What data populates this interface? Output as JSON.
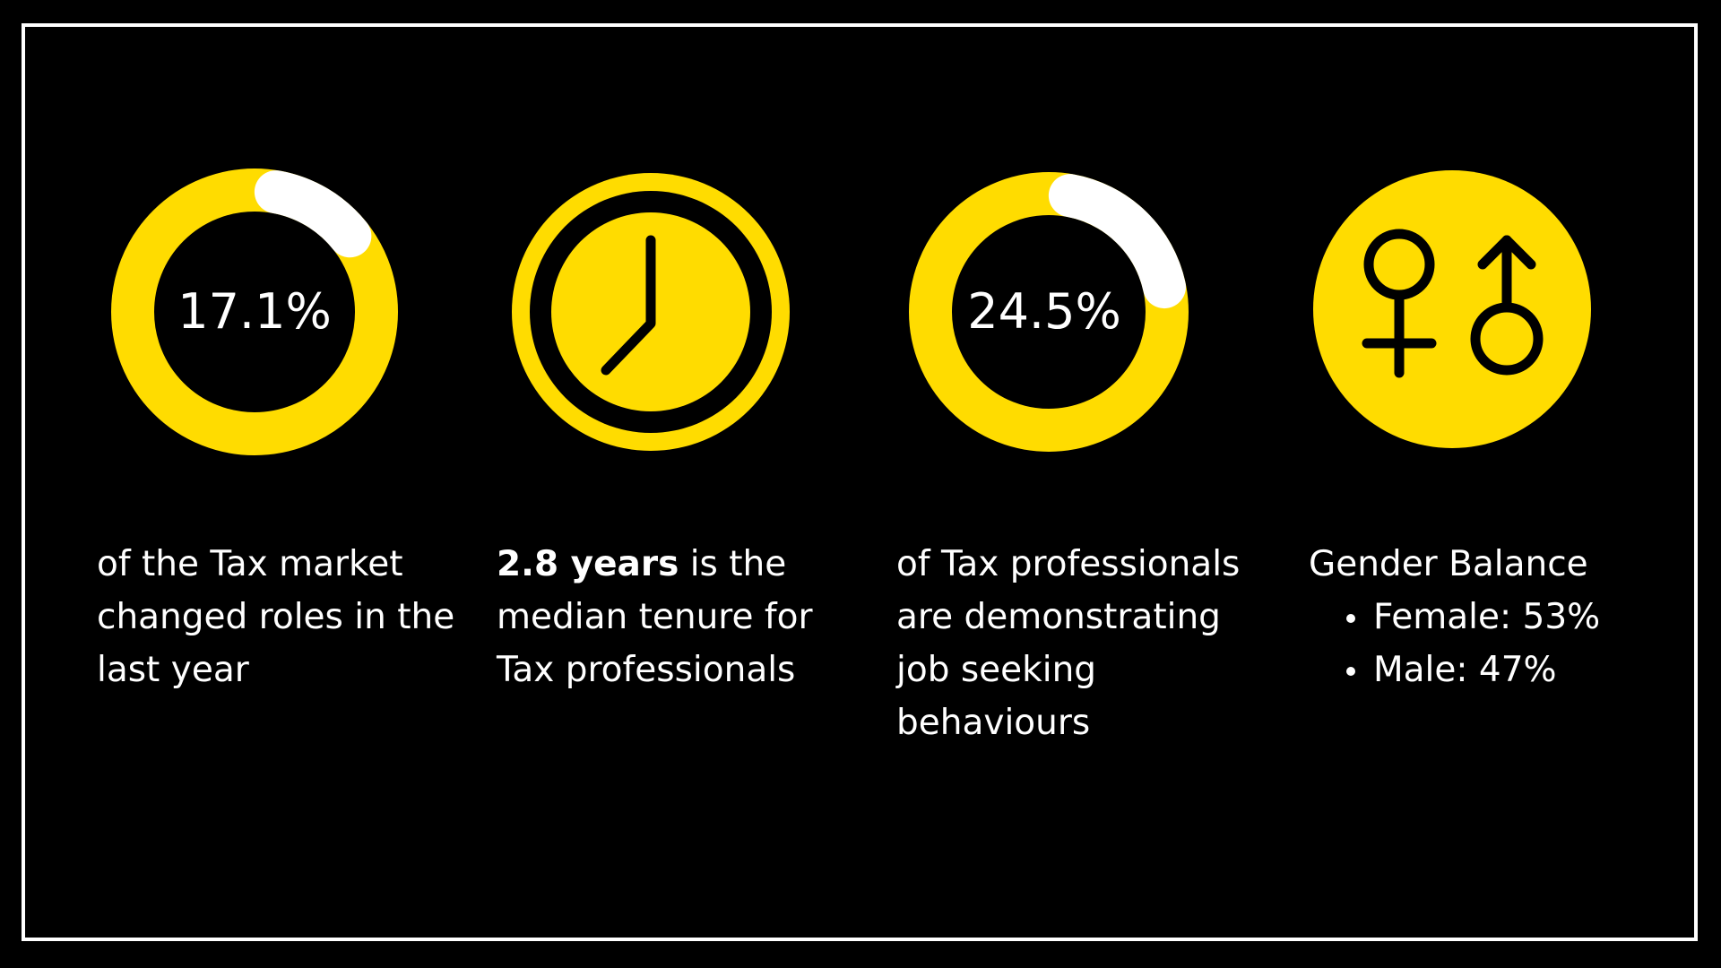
{
  "colors": {
    "background": "#000000",
    "accent": "#FFDC00",
    "highlight": "#FFFFFF"
  },
  "stats": [
    {
      "icon": "donut-progress",
      "value": "17.1%",
      "fraction": 0.171,
      "caption": "of the Tax market changed roles in the last year"
    },
    {
      "icon": "clock-icon",
      "caption_bold": "2.8 years",
      "caption_rest": " is the median tenure for Tax professionals"
    },
    {
      "icon": "donut-progress",
      "value": "24.5%",
      "fraction": 0.245,
      "caption": "of Tax professionals are demonstrating job seeking behaviours"
    },
    {
      "icon": "gender-icon",
      "title": "Gender Balance",
      "items": [
        "Female: 53%",
        "Male: 47%"
      ]
    }
  ]
}
